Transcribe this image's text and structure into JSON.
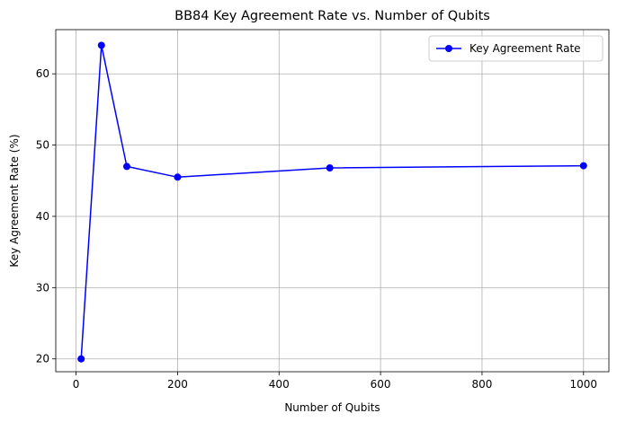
{
  "chart_data": {
    "type": "line",
    "title": "BB84 Key Agreement Rate vs. Number of Qubits",
    "xlabel": "Number of Qubits",
    "ylabel": "Key Agreement Rate (%)",
    "xlim": [
      -40,
      1050
    ],
    "ylim": [
      18.2,
      66.2
    ],
    "xticks": [
      0,
      200,
      400,
      600,
      800,
      1000
    ],
    "yticks": [
      20,
      30,
      40,
      50,
      60
    ],
    "grid": true,
    "legend_position": "top-right",
    "series": [
      {
        "name": "Key Agreement Rate",
        "color": "#0000ff",
        "marker": "circle",
        "x": [
          10,
          50,
          100,
          200,
          500,
          1000
        ],
        "y": [
          20.0,
          64.0,
          47.0,
          45.5,
          46.8,
          47.1
        ]
      }
    ]
  }
}
